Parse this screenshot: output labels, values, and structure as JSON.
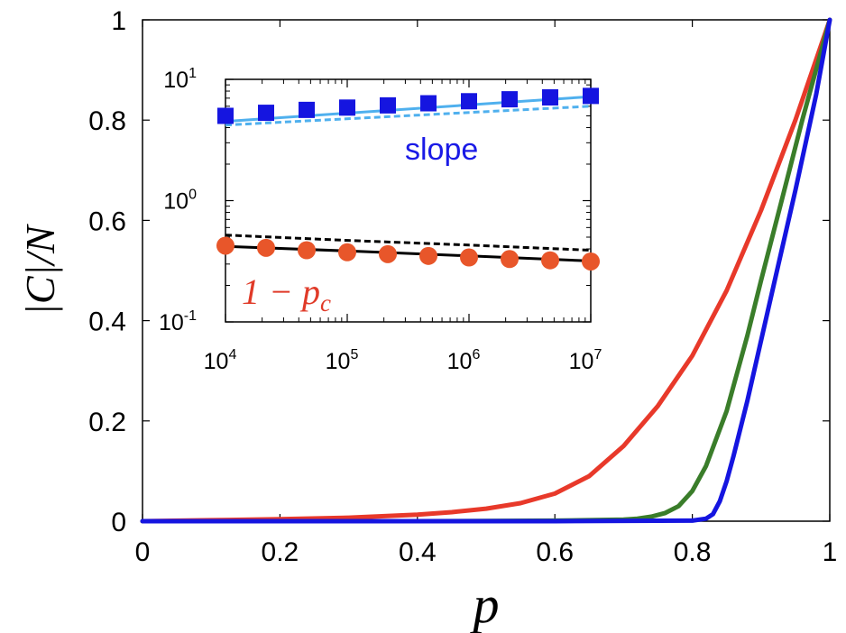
{
  "chart_data": [
    {
      "type": "line",
      "xlabel": "p",
      "ylabel": "|C|/N",
      "xlim": [
        0,
        1
      ],
      "ylim": [
        0,
        1
      ],
      "x_ticks": [
        "0",
        "0.2",
        "0.4",
        "0.6",
        "0.8",
        "1"
      ],
      "y_ticks": [
        "0",
        "0.2",
        "0.4",
        "0.6",
        "0.8",
        "1"
      ],
      "grid": false,
      "series": [
        {
          "color": "#e8392a",
          "x": [
            0,
            0.1,
            0.2,
            0.3,
            0.4,
            0.45,
            0.5,
            0.55,
            0.6,
            0.65,
            0.7,
            0.75,
            0.8,
            0.85,
            0.9,
            0.95,
            1.0
          ],
          "y": [
            0.0,
            0.002,
            0.004,
            0.007,
            0.013,
            0.018,
            0.025,
            0.036,
            0.055,
            0.09,
            0.15,
            0.23,
            0.33,
            0.46,
            0.62,
            0.8,
            1.0
          ]
        },
        {
          "color": "#3a7d2a",
          "x": [
            0,
            0.2,
            0.4,
            0.6,
            0.7,
            0.72,
            0.74,
            0.76,
            0.78,
            0.8,
            0.82,
            0.85,
            0.88,
            0.9,
            0.93,
            0.96,
            1.0
          ],
          "y": [
            0.0,
            0.0,
            0.0,
            0.001,
            0.003,
            0.005,
            0.009,
            0.016,
            0.03,
            0.06,
            0.11,
            0.22,
            0.37,
            0.48,
            0.64,
            0.8,
            1.0
          ]
        },
        {
          "color": "#1515e0",
          "x": [
            0,
            0.2,
            0.4,
            0.6,
            0.8,
            0.82,
            0.83,
            0.84,
            0.85,
            0.86,
            0.88,
            0.9,
            0.92,
            0.95,
            0.98,
            1.0
          ],
          "y": [
            0.0,
            0.0,
            0.0,
            0.0,
            0.001,
            0.005,
            0.014,
            0.04,
            0.08,
            0.13,
            0.24,
            0.36,
            0.48,
            0.66,
            0.85,
            1.0
          ]
        }
      ]
    },
    {
      "type": "scatter",
      "xscale": "log",
      "yscale": "log",
      "xlim": [
        10000,
        10000000
      ],
      "ylim": [
        0.1,
        10
      ],
      "x_ticks": [
        {
          "base": "10",
          "exp": "4"
        },
        {
          "base": "10",
          "exp": "5"
        },
        {
          "base": "10",
          "exp": "6"
        },
        {
          "base": "10",
          "exp": "7"
        }
      ],
      "y_ticks": [
        {
          "base": "10",
          "exp": "-1"
        },
        {
          "base": "10",
          "exp": "0"
        },
        {
          "base": "10",
          "exp": "1"
        }
      ],
      "annotations": {
        "slope": "slope",
        "pc_base": "1 − p",
        "pc_sub": "c"
      },
      "series": [
        {
          "marker": "square",
          "color": "#1515e0",
          "x": [
            10000,
            21544,
            46416,
            100000,
            215443,
            464159,
            1000000,
            2154435,
            4641589,
            10000000
          ],
          "y": [
            5.0,
            5.3,
            5.6,
            5.85,
            6.1,
            6.35,
            6.6,
            6.85,
            7.1,
            7.3
          ]
        },
        {
          "line": "solid",
          "color": "#4fb0ee",
          "x": [
            10000,
            10000000
          ],
          "y": [
            4.5,
            7.2
          ]
        },
        {
          "line": "dashed",
          "color": "#4fb0ee",
          "x": [
            10000,
            10000000
          ],
          "y": [
            4.2,
            6.0
          ]
        },
        {
          "marker": "circle",
          "color": "#e8562a",
          "x": [
            10000,
            21544,
            46416,
            100000,
            215443,
            464159,
            1000000,
            2154435,
            4641589,
            10000000
          ],
          "y": [
            0.425,
            0.408,
            0.39,
            0.375,
            0.362,
            0.35,
            0.34,
            0.33,
            0.322,
            0.315
          ]
        },
        {
          "line": "solid",
          "color": "#000000",
          "x": [
            10000,
            100000,
            1000000,
            10000000
          ],
          "y": [
            0.42,
            0.385,
            0.35,
            0.318
          ]
        },
        {
          "line": "dashed",
          "color": "#000000",
          "x": [
            10000,
            100000,
            1000000,
            10000000
          ],
          "y": [
            0.52,
            0.47,
            0.43,
            0.39
          ]
        }
      ]
    }
  ]
}
